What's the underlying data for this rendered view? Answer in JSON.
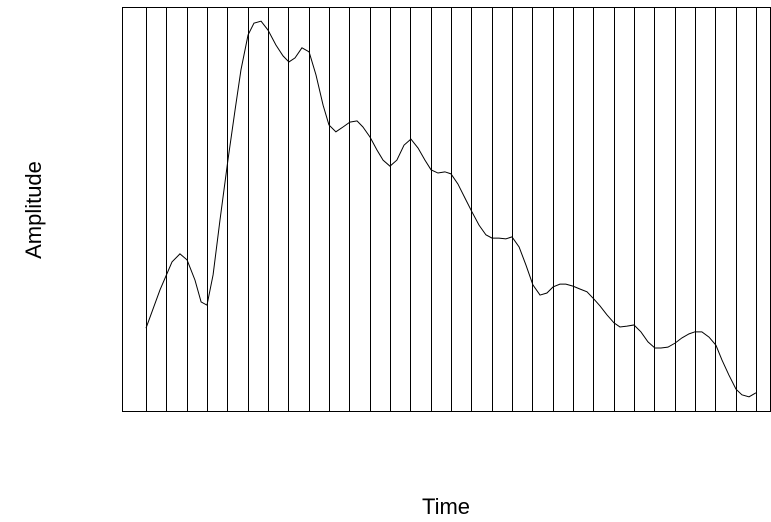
{
  "chart_data": {
    "type": "line",
    "xlabel": "Time",
    "ylabel": "Amplitude",
    "xlim": [
      -1.18,
      30.74
    ],
    "ylim": [
      0,
      100
    ],
    "xgrid": [
      0,
      1,
      2,
      3,
      4,
      5,
      6,
      7,
      8,
      9,
      10,
      11,
      12,
      13,
      14,
      15,
      16,
      17,
      18,
      19,
      20,
      21,
      22,
      23,
      24,
      25,
      26,
      27,
      28,
      29,
      30
    ],
    "grid": true,
    "color": "#000000",
    "x": [
      0,
      0.69,
      1.28,
      1.67,
      2.02,
      2.41,
      2.71,
      3.0,
      3.3,
      3.64,
      4.03,
      4.38,
      4.67,
      5.02,
      5.31,
      5.66,
      6.0,
      6.39,
      6.74,
      7.03,
      7.33,
      7.67,
      8.02,
      8.36,
      8.71,
      9.0,
      9.34,
      9.69,
      10.03,
      10.38,
      10.67,
      11.02,
      11.36,
      11.66,
      12.0,
      12.34,
      12.69,
      13.03,
      13.38,
      13.72,
      14.02,
      14.36,
      14.7,
      15.0,
      15.34,
      15.69,
      16.03,
      16.38,
      16.72,
      17.02,
      17.36,
      17.7,
      18.0,
      18.35,
      18.69,
      19.03,
      19.38,
      19.72,
      20.02,
      20.36,
      20.65,
      21.0,
      21.34,
      21.69,
      22.03,
      22.33,
      22.67,
      23.02,
      23.31,
      23.66,
      24.0,
      24.34,
      24.69,
      25.03,
      25.33,
      25.67,
      26.02,
      26.36,
      26.71,
      27.0,
      27.34,
      27.69,
      28.03,
      28.33,
      28.67,
      29.02,
      29.31,
      29.66,
      30.0
    ],
    "values": [
      20.5,
      30.0,
      36.9,
      38.9,
      37.4,
      32.4,
      27.0,
      26.2,
      33.7,
      47.3,
      62.1,
      74.5,
      84.4,
      93.1,
      96.0,
      96.5,
      94.3,
      90.6,
      87.9,
      86.4,
      87.4,
      89.9,
      88.9,
      83.2,
      75.7,
      70.8,
      69.1,
      70.3,
      71.5,
      71.8,
      70.3,
      67.8,
      64.6,
      62.1,
      60.6,
      62.1,
      65.8,
      67.3,
      65.1,
      62.1,
      59.7,
      58.9,
      59.2,
      58.7,
      56.2,
      52.7,
      49.3,
      46.0,
      43.6,
      42.8,
      42.8,
      42.6,
      43.1,
      40.6,
      36.1,
      31.2,
      28.7,
      29.2,
      30.7,
      31.4,
      31.4,
      30.9,
      30.2,
      29.5,
      27.7,
      26.0,
      23.8,
      21.8,
      20.8,
      21.0,
      21.3,
      19.6,
      17.1,
      15.6,
      15.6,
      15.8,
      16.8,
      18.1,
      19.1,
      19.6,
      19.6,
      18.3,
      16.3,
      12.6,
      8.9,
      5.4,
      4.0,
      3.5,
      4.5
    ]
  }
}
